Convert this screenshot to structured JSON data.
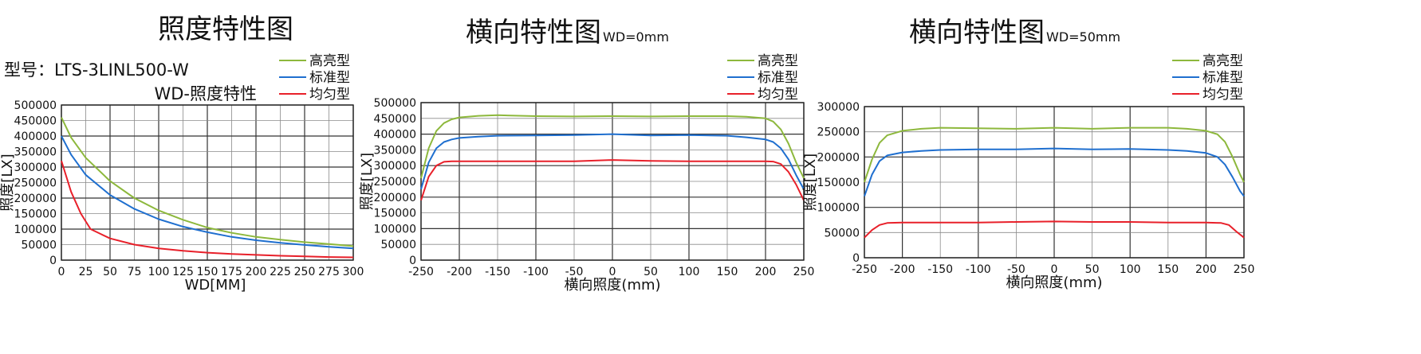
{
  "charts": [
    {
      "type": "line",
      "title": "照度特性图",
      "title_suffix": "",
      "model_label": "型号：LTS-3LINL500-W",
      "chart_caption": "WD-照度特性",
      "xlabel": "WD[MM]",
      "ylabel": "照度[LX]",
      "xlim": [
        0,
        300
      ],
      "ylim": [
        0,
        500000
      ],
      "x_ticks": [
        0,
        25,
        50,
        75,
        100,
        125,
        150,
        175,
        200,
        225,
        250,
        275,
        300
      ],
      "y_ticks": [
        0,
        50000,
        100000,
        150000,
        200000,
        250000,
        300000,
        350000,
        400000,
        450000,
        500000
      ],
      "grid": true,
      "legend_position": "top-right",
      "series": [
        {
          "name": "高亮型",
          "color": "#8db83c",
          "x": [
            0,
            10,
            25,
            50,
            75,
            100,
            125,
            150,
            175,
            200,
            225,
            250,
            275,
            300
          ],
          "y": [
            460000,
            395000,
            330000,
            255000,
            200000,
            160000,
            130000,
            105000,
            88000,
            75000,
            66000,
            58000,
            52000,
            45000
          ]
        },
        {
          "name": "标准型",
          "color": "#1f6fcf",
          "x": [
            0,
            10,
            25,
            50,
            75,
            100,
            125,
            150,
            175,
            200,
            225,
            250,
            275,
            300
          ],
          "y": [
            400000,
            340000,
            275000,
            210000,
            165000,
            132000,
            108000,
            90000,
            75000,
            64000,
            56000,
            49000,
            43000,
            38000
          ]
        },
        {
          "name": "均匀型",
          "color": "#e8202a",
          "x": [
            0,
            10,
            20,
            30,
            40,
            50,
            75,
            100,
            125,
            150,
            175,
            200,
            225,
            250,
            275,
            300
          ],
          "y": [
            320000,
            220000,
            150000,
            100000,
            85000,
            70000,
            50000,
            38000,
            30000,
            24000,
            20000,
            17000,
            14000,
            12000,
            10000,
            9000
          ]
        }
      ]
    },
    {
      "type": "line",
      "title": "横向特性图",
      "title_suffix": "WD=0mm",
      "model_label": "",
      "chart_caption": "",
      "xlabel": "横向照度(mm)",
      "ylabel": "照度[LX]",
      "xlim": [
        -250,
        250
      ],
      "ylim": [
        0,
        500000
      ],
      "x_ticks": [
        -250,
        -200,
        -150,
        -100,
        -50,
        0,
        50,
        100,
        150,
        200,
        250
      ],
      "y_ticks": [
        0,
        50000,
        100000,
        150000,
        200000,
        250000,
        300000,
        350000,
        400000,
        450000,
        500000
      ],
      "grid": true,
      "legend_position": "top-right",
      "series": [
        {
          "name": "高亮型",
          "color": "#8db83c",
          "x": [
            -250,
            -240,
            -230,
            -220,
            -210,
            -200,
            -175,
            -150,
            -100,
            -50,
            0,
            50,
            100,
            150,
            175,
            200,
            210,
            220,
            230,
            240,
            250
          ],
          "y": [
            260000,
            355000,
            410000,
            435000,
            447000,
            453000,
            458000,
            460000,
            457000,
            456000,
            457000,
            456000,
            457000,
            457000,
            455000,
            450000,
            440000,
            415000,
            370000,
            310000,
            260000
          ]
        },
        {
          "name": "标准型",
          "color": "#1f6fcf",
          "x": [
            -250,
            -240,
            -230,
            -220,
            -210,
            -200,
            -175,
            -150,
            -100,
            -50,
            0,
            50,
            100,
            150,
            175,
            200,
            210,
            220,
            230,
            240,
            250
          ],
          "y": [
            225000,
            310000,
            355000,
            375000,
            383000,
            388000,
            392000,
            395000,
            396000,
            397000,
            400000,
            396000,
            397000,
            395000,
            390000,
            383000,
            375000,
            355000,
            320000,
            270000,
            225000
          ]
        },
        {
          "name": "均匀型",
          "color": "#e8202a",
          "x": [
            -250,
            -240,
            -230,
            -220,
            -210,
            -200,
            -150,
            -100,
            -50,
            0,
            50,
            100,
            150,
            200,
            210,
            220,
            230,
            240,
            250
          ],
          "y": [
            190000,
            265000,
            300000,
            312000,
            314000,
            314000,
            314000,
            314000,
            314000,
            318000,
            315000,
            314000,
            314000,
            314000,
            313000,
            305000,
            280000,
            240000,
            190000
          ]
        }
      ]
    },
    {
      "type": "line",
      "title": "横向特性图",
      "title_suffix": "WD=50mm",
      "model_label": "",
      "chart_caption": "",
      "xlabel": "横向照度(mm)",
      "ylabel": "照度[LX]",
      "xlim": [
        -250,
        250
      ],
      "ylim": [
        0,
        300000
      ],
      "x_ticks": [
        -250,
        -200,
        -150,
        -100,
        -50,
        0,
        50,
        100,
        150,
        200,
        250
      ],
      "y_ticks": [
        0,
        50000,
        100000,
        150000,
        200000,
        250000,
        300000
      ],
      "grid": true,
      "legend_position": "top-right",
      "series": [
        {
          "name": "高亮型",
          "color": "#8db83c",
          "x": [
            -250,
            -240,
            -230,
            -220,
            -200,
            -175,
            -150,
            -100,
            -50,
            0,
            50,
            100,
            150,
            175,
            200,
            215,
            225,
            235,
            245,
            250
          ],
          "y": [
            150000,
            195000,
            228000,
            243000,
            252000,
            256000,
            258000,
            257000,
            256000,
            258000,
            256000,
            258000,
            258000,
            256000,
            252000,
            245000,
            230000,
            200000,
            165000,
            150000
          ]
        },
        {
          "name": "标准型",
          "color": "#1f6fcf",
          "x": [
            -250,
            -240,
            -230,
            -220,
            -200,
            -175,
            -150,
            -100,
            -50,
            0,
            50,
            100,
            150,
            175,
            200,
            215,
            225,
            235,
            245,
            250
          ],
          "y": [
            122000,
            165000,
            192000,
            203000,
            209000,
            212000,
            214000,
            215000,
            215000,
            217000,
            215000,
            216000,
            214000,
            212000,
            208000,
            200000,
            185000,
            160000,
            132000,
            122000
          ]
        },
        {
          "name": "均匀型",
          "color": "#e8202a",
          "x": [
            -250,
            -240,
            -230,
            -220,
            -200,
            -150,
            -100,
            -50,
            0,
            50,
            100,
            150,
            200,
            220,
            230,
            240,
            250
          ],
          "y": [
            40000,
            55000,
            65000,
            69000,
            70000,
            70000,
            70000,
            71000,
            72000,
            71000,
            71000,
            70000,
            70000,
            69000,
            65000,
            52000,
            40000
          ]
        }
      ]
    }
  ]
}
